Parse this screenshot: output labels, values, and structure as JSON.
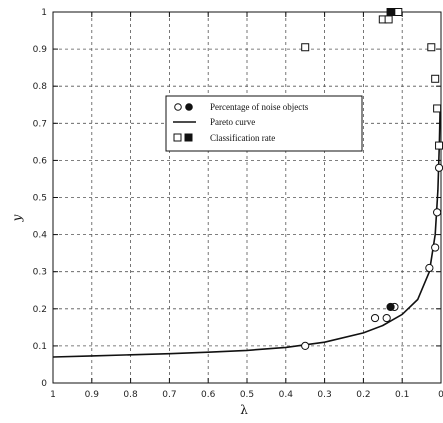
{
  "chart_data": {
    "type": "scatter",
    "xlabel": "λ",
    "ylabel": "y",
    "xlim": [
      1,
      0
    ],
    "ylim": [
      0,
      1
    ],
    "x_ticks": [
      1,
      0.9,
      0.8,
      0.7,
      0.6,
      0.5,
      0.4,
      0.3,
      0.2,
      0.1,
      0
    ],
    "x_tick_labels": [
      "1",
      "0.9",
      "0.8",
      "0.7",
      "0.6",
      "0.5",
      "0.4",
      "0.3",
      "0.2",
      "0.1",
      "0"
    ],
    "y_ticks": [
      0,
      0.1,
      0.2,
      0.3,
      0.4,
      0.5,
      0.6,
      0.7,
      0.8,
      0.9,
      1
    ],
    "y_tick_labels": [
      "0",
      "0.1",
      "0.2",
      "0.3",
      "0.4",
      "0.5",
      "0.6",
      "0.7",
      "0.8",
      "0.9",
      "1"
    ],
    "grid": true,
    "legend_position": "upper-center",
    "legend": [
      {
        "symbol": "circle-pair",
        "label": "Percentage of noise objects"
      },
      {
        "symbol": "line",
        "label": "Pareto curve"
      },
      {
        "symbol": "square-pair",
        "label": "Classification rate"
      }
    ],
    "series": [
      {
        "name": "Percentage of noise objects",
        "marker": "circle-open",
        "points": [
          [
            0.35,
            0.1
          ],
          [
            0.17,
            0.175
          ],
          [
            0.14,
            0.175
          ],
          [
            0.12,
            0.205
          ],
          [
            0.03,
            0.31
          ],
          [
            0.015,
            0.365
          ],
          [
            0.01,
            0.46
          ],
          [
            0.005,
            0.58
          ]
        ]
      },
      {
        "name": "Percentage of noise objects",
        "marker": "circle-filled",
        "points": [
          [
            0.13,
            0.205
          ]
        ]
      },
      {
        "name": "Classification rate",
        "marker": "square-open",
        "points": [
          [
            0.35,
            0.905
          ],
          [
            0.15,
            0.98
          ],
          [
            0.135,
            0.98
          ],
          [
            0.11,
            1.0
          ],
          [
            0.025,
            0.905
          ],
          [
            0.015,
            0.82
          ],
          [
            0.01,
            0.74
          ],
          [
            0.005,
            0.64
          ]
        ]
      },
      {
        "name": "Classification rate",
        "marker": "square-filled",
        "points": [
          [
            0.13,
            1.0
          ]
        ]
      },
      {
        "name": "Pareto curve",
        "marker": "line",
        "points": [
          [
            1,
            0.07
          ],
          [
            0.9,
            0.073
          ],
          [
            0.8,
            0.076
          ],
          [
            0.7,
            0.079
          ],
          [
            0.6,
            0.083
          ],
          [
            0.5,
            0.088
          ],
          [
            0.4,
            0.096
          ],
          [
            0.3,
            0.11
          ],
          [
            0.2,
            0.135
          ],
          [
            0.15,
            0.155
          ],
          [
            0.1,
            0.185
          ],
          [
            0.06,
            0.225
          ],
          [
            0.03,
            0.3
          ],
          [
            0.015,
            0.4
          ],
          [
            0.008,
            0.52
          ],
          [
            0.004,
            0.65
          ],
          [
            0.002,
            0.75
          ]
        ]
      }
    ]
  }
}
